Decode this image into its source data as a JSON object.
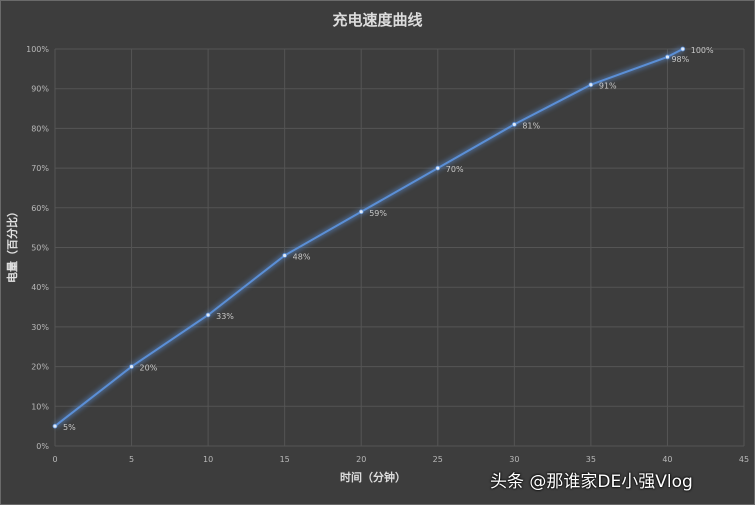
{
  "chart_data": {
    "type": "line",
    "title": "充电速度曲线",
    "xlabel": "时间（分钟）",
    "ylabel": "电量（百分比）",
    "x": [
      0,
      5,
      10,
      15,
      20,
      25,
      30,
      35,
      40,
      41
    ],
    "series": [
      {
        "name": "电量",
        "values": [
          5,
          20,
          33,
          48,
          59,
          70,
          81,
          91,
          98,
          100
        ],
        "color": "#5b8fd6"
      }
    ],
    "data_labels": [
      "5%",
      "20%",
      "33%",
      "48%",
      "59%",
      "70%",
      "81%",
      "91%",
      "98%",
      "100%"
    ],
    "xlim": [
      0,
      45
    ],
    "ylim": [
      0,
      100
    ],
    "x_ticks": [
      "0",
      "5",
      "10",
      "15",
      "20",
      "25",
      "30",
      "35",
      "40",
      "45"
    ],
    "y_ticks": [
      "0%",
      "10%",
      "20%",
      "30%",
      "40%",
      "50%",
      "60%",
      "70%",
      "80%",
      "90%",
      "100%"
    ],
    "grid": true,
    "legend": "none"
  },
  "watermark": "头条 @那谁家DE小强Vlog"
}
